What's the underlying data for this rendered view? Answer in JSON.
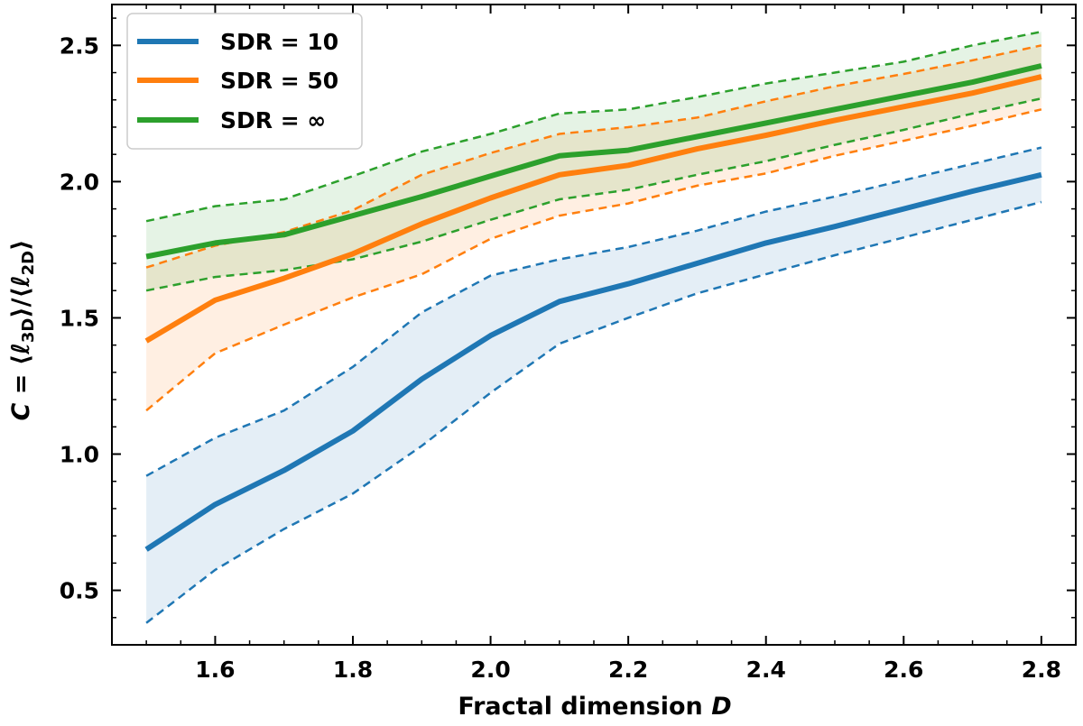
{
  "chart_data": {
    "type": "line",
    "xlabel": "Fractal dimension D",
    "xlabel_main": "Fractal dimension ",
    "xlabel_var": "D",
    "ylabel": "C = ⟨ℓ3D⟩/⟨ℓ2D⟩",
    "ylabel_parts": {
      "c": "C",
      "eq": " = ⟨",
      "ell": "ℓ",
      "sub1": "3D",
      "mid": "⟩/⟨",
      "sub2": "2D",
      "close": "⟩"
    },
    "xlim": [
      1.45,
      2.85
    ],
    "ylim": [
      0.3,
      2.65
    ],
    "xticks": [
      1.6,
      1.8,
      2.0,
      2.2,
      2.4,
      2.6,
      2.8
    ],
    "xtick_labels": [
      "1.6",
      "1.8",
      "2.0",
      "2.2",
      "2.4",
      "2.6",
      "2.8"
    ],
    "yticks": [
      0.5,
      1.0,
      1.5,
      2.0,
      2.5
    ],
    "ytick_labels": [
      "0.5",
      "1.0",
      "1.5",
      "2.0",
      "2.5"
    ],
    "legend_position": "top-left",
    "x": [
      1.5,
      1.6,
      1.7,
      1.8,
      1.9,
      2.0,
      2.1,
      2.2,
      2.3,
      2.4,
      2.5,
      2.6,
      2.7,
      2.8
    ],
    "series": [
      {
        "name": "SDR = 10",
        "color": "#1f77b4",
        "values": [
          0.65,
          0.815,
          0.94,
          1.085,
          1.275,
          1.435,
          1.56,
          1.625,
          1.7,
          1.775,
          1.835,
          1.9,
          1.965,
          2.025
        ],
        "upper": [
          0.92,
          1.06,
          1.16,
          1.32,
          1.52,
          1.655,
          1.715,
          1.76,
          1.82,
          1.89,
          1.945,
          2.005,
          2.065,
          2.125
        ],
        "lower": [
          0.38,
          0.575,
          0.725,
          0.855,
          1.03,
          1.225,
          1.405,
          1.5,
          1.59,
          1.66,
          1.73,
          1.795,
          1.86,
          1.925
        ]
      },
      {
        "name": "SDR = 50",
        "color": "#ff7f0e",
        "values": [
          1.415,
          1.565,
          1.645,
          1.735,
          1.845,
          1.94,
          2.025,
          2.06,
          2.12,
          2.17,
          2.225,
          2.275,
          2.325,
          2.385
        ],
        "upper": [
          1.685,
          1.765,
          1.815,
          1.895,
          2.025,
          2.105,
          2.175,
          2.2,
          2.235,
          2.295,
          2.35,
          2.395,
          2.445,
          2.5
        ],
        "lower": [
          1.16,
          1.37,
          1.475,
          1.575,
          1.66,
          1.79,
          1.875,
          1.92,
          1.985,
          2.03,
          2.095,
          2.15,
          2.205,
          2.265
        ]
      },
      {
        "name": "SDR = ∞",
        "color": "#2ca02c",
        "values": [
          1.725,
          1.775,
          1.805,
          1.875,
          1.945,
          2.02,
          2.095,
          2.115,
          2.165,
          2.215,
          2.265,
          2.315,
          2.365,
          2.425
        ],
        "upper": [
          1.855,
          1.91,
          1.935,
          2.02,
          2.11,
          2.175,
          2.25,
          2.265,
          2.31,
          2.36,
          2.4,
          2.44,
          2.5,
          2.55
        ],
        "lower": [
          1.6,
          1.65,
          1.675,
          1.715,
          1.78,
          1.86,
          1.935,
          1.97,
          2.025,
          2.075,
          2.135,
          2.19,
          2.25,
          2.305
        ]
      }
    ],
    "legend_labels": [
      "SDR = 10",
      "SDR = 50",
      "SDR = ∞"
    ]
  }
}
